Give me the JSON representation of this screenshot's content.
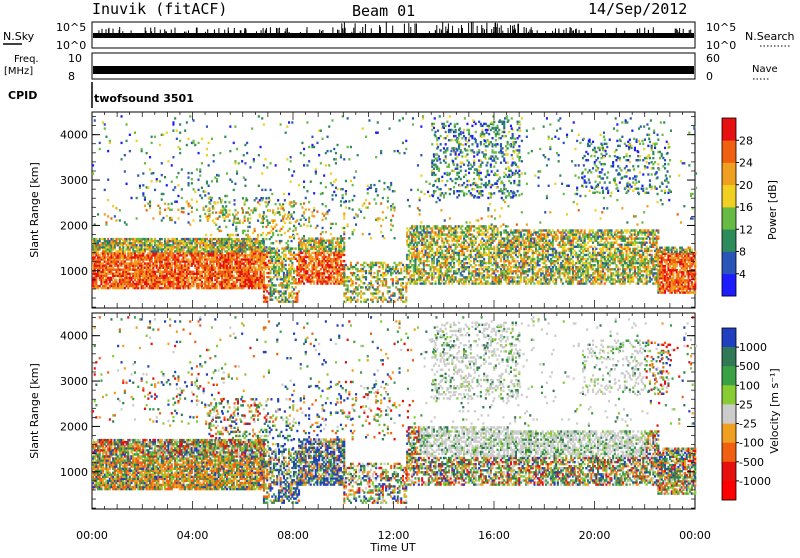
{
  "header": {
    "station": "Inuvik (fitACF)",
    "beam": "Beam 01",
    "date": "14/Sep/2012"
  },
  "top_panels": {
    "nsky_label": "N.Sky",
    "nsky_ticks": [
      "10^5",
      "10^0"
    ],
    "nsearch_label": "N.Search",
    "nsearch_ticks": [
      "10^5",
      "10^0"
    ],
    "freq_label_1": "Freq.",
    "freq_label_2": "[MHz]",
    "freq_ticks": [
      "10",
      "8"
    ],
    "nave_label": "Nave",
    "nave_ticks": [
      "60",
      "0"
    ],
    "cpid_label": "CPID",
    "cpid_value": "twofsound 3501"
  },
  "chart_data": [
    {
      "type": "heatmap",
      "title": "",
      "xlabel": "Time UT",
      "ylabel": "Slant Range [km]",
      "x_ticks": [
        "00:00",
        "04:00",
        "08:00",
        "12:00",
        "16:00",
        "20:00",
        "00:00"
      ],
      "x_range_hours": [
        0,
        24
      ],
      "y_ticks": [
        "1000",
        "2000",
        "3000",
        "4000"
      ],
      "ylim": [
        180,
        4500
      ],
      "colorbar_label": "Power [dB]",
      "colorbar_ticks": [
        "28",
        "24",
        "20",
        "16",
        "12",
        "8",
        "4"
      ],
      "colorbar_range": [
        0,
        32
      ],
      "colors": [
        "#1c1cff",
        "#2a55b8",
        "#2d8a5a",
        "#66bb44",
        "#f0d020",
        "#f0a020",
        "#f06010",
        "#e61010"
      ]
    },
    {
      "type": "heatmap",
      "title": "",
      "xlabel": "Time UT",
      "ylabel": "Slant Range [km]",
      "x_ticks": [
        "00:00",
        "04:00",
        "08:00",
        "12:00",
        "16:00",
        "20:00",
        "00:00"
      ],
      "x_range_hours": [
        0,
        24
      ],
      "y_ticks": [
        "1000",
        "2000",
        "3000",
        "4000"
      ],
      "ylim": [
        180,
        4500
      ],
      "colorbar_label": "Velocity [m s⁻¹]",
      "colorbar_ticks": [
        "1000",
        "500",
        "100",
        "25",
        "-25",
        "-100",
        "-500",
        "-1000"
      ],
      "colors": [
        "#2040c0",
        "#2f7a55",
        "#3aa044",
        "#88cc33",
        "#cccccc",
        "#f0a020",
        "#f06010",
        "#e61010",
        "#ff0000"
      ]
    }
  ]
}
